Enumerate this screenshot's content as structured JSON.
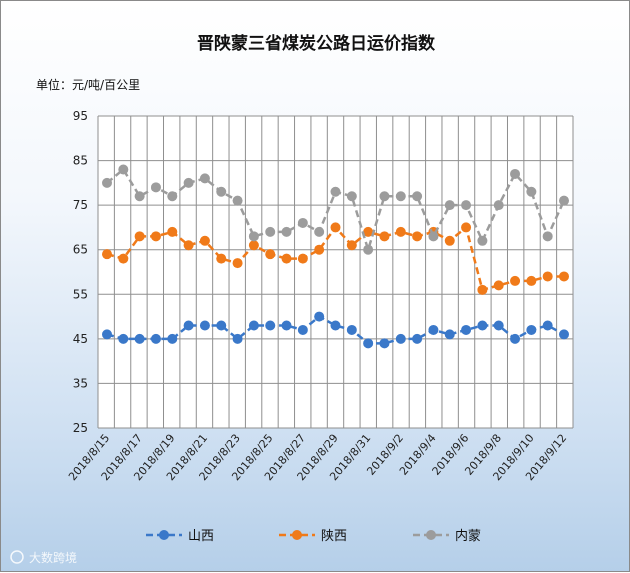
{
  "chart_data": {
    "type": "line",
    "title": "晋陕蒙三省煤炭公路日运价指数",
    "unit_label": "单位：元/吨/百公里",
    "ylim": [
      25,
      95
    ],
    "yticks": [
      25,
      35,
      45,
      55,
      65,
      75,
      85,
      95
    ],
    "x": [
      "2018/8/15",
      "2018/8/16",
      "2018/8/17",
      "2018/8/18",
      "2018/8/19",
      "2018/8/20",
      "2018/8/21",
      "2018/8/22",
      "2018/8/23",
      "2018/8/24",
      "2018/8/25",
      "2018/8/26",
      "2018/8/27",
      "2018/8/28",
      "2018/8/29",
      "2018/8/30",
      "2018/8/31",
      "2018/9/1",
      "2018/9/2",
      "2018/9/3",
      "2018/9/4",
      "2018/9/5",
      "2018/9/6",
      "2018/9/7",
      "2018/9/8",
      "2018/9/9",
      "2018/9/10",
      "2018/9/11",
      "2018/9/12"
    ],
    "xticks": [
      "2018/8/15",
      "2018/8/17",
      "2018/8/19",
      "2018/8/21",
      "2018/8/23",
      "2018/8/25",
      "2018/8/27",
      "2018/8/29",
      "2018/8/31",
      "2018/9/2",
      "2018/9/4",
      "2018/9/6",
      "2018/9/8",
      "2018/9/10",
      "2018/9/12"
    ],
    "grid": true,
    "legend_position": "bottom",
    "series": [
      {
        "name": "山西",
        "color": "#3a78c9",
        "values": [
          46,
          45,
          45,
          45,
          45,
          48,
          48,
          48,
          45,
          48,
          48,
          48,
          47,
          50,
          48,
          47,
          44,
          44,
          45,
          45,
          47,
          46,
          47,
          48,
          48,
          45,
          47,
          48,
          46
        ]
      },
      {
        "name": "陕西",
        "color": "#f07a19",
        "values": [
          64,
          63,
          68,
          68,
          69,
          66,
          67,
          63,
          62,
          66,
          64,
          63,
          63,
          65,
          70,
          66,
          69,
          68,
          69,
          68,
          69,
          67,
          70,
          56,
          57,
          58,
          58,
          59,
          59
        ]
      },
      {
        "name": "内蒙",
        "color": "#9c9c9c",
        "values": [
          80,
          83,
          77,
          79,
          77,
          80,
          81,
          78,
          76,
          68,
          69,
          69,
          71,
          69,
          78,
          77,
          65,
          77,
          77,
          77,
          68,
          75,
          75,
          67,
          75,
          82,
          78,
          68,
          76
        ]
      }
    ]
  },
  "watermark": "大数跨境"
}
